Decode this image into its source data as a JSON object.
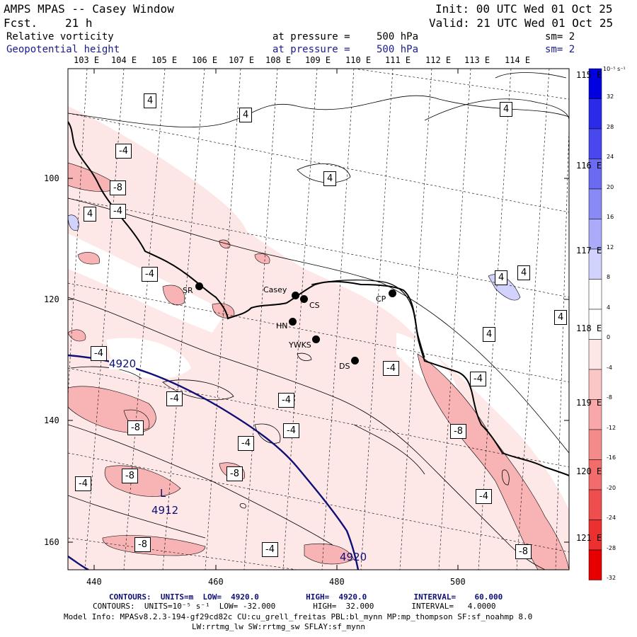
{
  "header": {
    "title": "AMPS MPAS -- Casey Window",
    "fcst_label": "Fcst.",
    "fcst_value": "21 h",
    "init": "Init: 00 UTC Wed 01 Oct 25",
    "valid": "Valid: 21 UTC Wed 01 Oct 25",
    "field1_name": "Relative vorticity",
    "field1_pressure_label": "at pressure =",
    "field1_pressure": "500 hPa",
    "field1_sm": "sm= 2",
    "field2_name": "Geopotential height",
    "field2_pressure_label": "at pressure =",
    "field2_pressure": "500 hPa",
    "field2_sm": "sm= 2"
  },
  "map": {
    "top_lon_labels": [
      "103 E",
      "104 E",
      "105 E",
      "106 E",
      "107 E",
      "108 E",
      "109 E",
      "110 E",
      "111 E",
      "112 E",
      "113 E",
      "114 E"
    ],
    "right_lon_labels": [
      "115 E",
      "116 E",
      "117 E",
      "118 E",
      "119 E",
      "120 E",
      "121 E"
    ],
    "y_labels": [
      "100",
      "120",
      "140",
      "160"
    ],
    "x_labels": [
      "440",
      "460",
      "480",
      "500"
    ],
    "stations": [
      {
        "name": "SR"
      },
      {
        "name": "Casey"
      },
      {
        "name": "CS"
      },
      {
        "name": "HN"
      },
      {
        "name": "YWKS"
      },
      {
        "name": "DS"
      },
      {
        "name": "CP"
      }
    ],
    "contour_labels": [
      "4",
      "4",
      "4",
      "4",
      "4",
      "4",
      "4",
      "4",
      "4",
      "-4",
      "-4",
      "-4",
      "-4",
      "-4",
      "-4",
      "-4",
      "-4",
      "-4",
      "-4",
      "-4",
      "-4",
      "-4",
      "-8",
      "-8",
      "-8",
      "-8",
      "-8",
      "-8",
      "-8",
      "-8"
    ],
    "height_labels": [
      "4920",
      "4920"
    ],
    "low_marker": "L",
    "low_value": "4912"
  },
  "colorbar": {
    "unit": "10⁻⁵ s⁻¹",
    "ticks": [
      "32",
      "28",
      "24",
      "20",
      "16",
      "12",
      "8",
      "4",
      "0",
      "-4",
      "-8",
      "-12",
      "-16",
      "-20",
      "-24",
      "-28",
      "-32"
    ],
    "colors": [
      "#0000e0",
      "#2a2ae8",
      "#4848ee",
      "#6a6af2",
      "#8a8af6",
      "#ababfa",
      "#d2d2ff",
      "#ffffff",
      "#ffffff",
      "#fde6e6",
      "#fbc6c6",
      "#f8a8a8",
      "#f58a8a",
      "#f26c6c",
      "#ef4e4e",
      "#ec3030",
      "#e80000"
    ]
  },
  "footer": {
    "line1": "CONTOURS:  UNITS=m  LOW=  4920.0          HIGH=  4920.0          INTERVAL=    60.000",
    "line2": "CONTOURS:  UNITS=10⁻⁵ s⁻¹  LOW= -32.000        HIGH=  32.000        INTERVAL=   4.0000",
    "line3": "Model Info: MPASv8.2.3-194-gf29cd82c CU:cu_grell_freitas PBL:bl_mynn MP:mp_thompson SF:sf_noahmp 8.0",
    "line4": "LW:rrtmg_lw SW:rrtmg_sw SFLAY:sf_mynn"
  }
}
